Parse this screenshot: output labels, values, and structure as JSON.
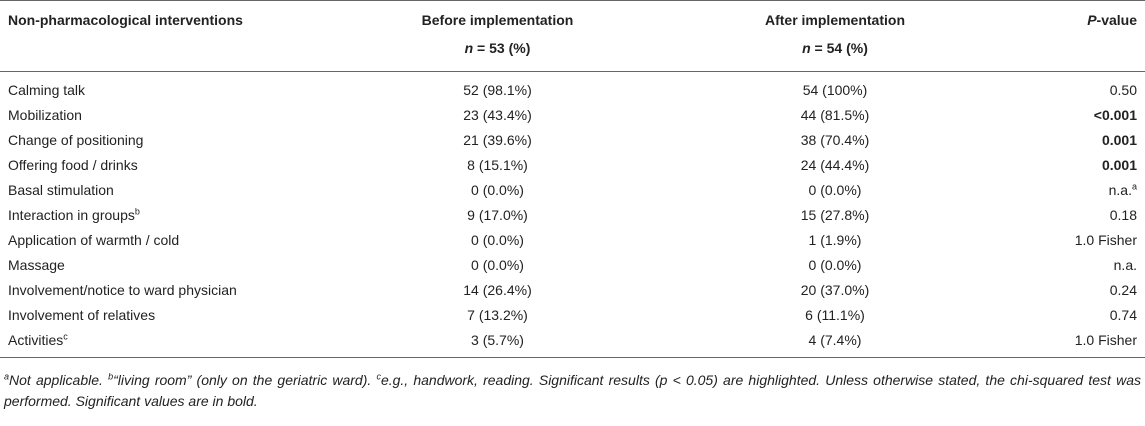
{
  "header": {
    "col1": "Non-pharmacological interventions",
    "col2_line1": "Before implementation",
    "col2_n": "n",
    "col2_rest": " = 53 (%)",
    "col3_line1": "After implementation",
    "col3_n": "n",
    "col3_rest": " = 54 (%)",
    "col4_p": "P",
    "col4_rest": "-value"
  },
  "rows": [
    {
      "label": "Calming talk",
      "sup": "",
      "before": "52 (98.1%)",
      "after": "54 (100%)",
      "p": "0.50",
      "p_sup": "",
      "bold": false
    },
    {
      "label": "Mobilization",
      "sup": "",
      "before": "23 (43.4%)",
      "after": "44 (81.5%)",
      "p": "<0.001",
      "p_sup": "",
      "bold": true
    },
    {
      "label": "Change of positioning",
      "sup": "",
      "before": "21 (39.6%)",
      "after": "38 (70.4%)",
      "p": "0.001",
      "p_sup": "",
      "bold": true
    },
    {
      "label": "Offering food / drinks",
      "sup": "",
      "before": "8 (15.1%)",
      "after": "24 (44.4%)",
      "p": "0.001",
      "p_sup": "",
      "bold": true
    },
    {
      "label": "Basal stimulation",
      "sup": "",
      "before": "0 (0.0%)",
      "after": "0 (0.0%)",
      "p": "n.a.",
      "p_sup": "a",
      "bold": false
    },
    {
      "label": "Interaction in groups",
      "sup": "b",
      "before": "9 (17.0%)",
      "after": "15 (27.8%)",
      "p": "0.18",
      "p_sup": "",
      "bold": false
    },
    {
      "label": "Application of warmth / cold",
      "sup": "",
      "before": "0 (0.0%)",
      "after": "1 (1.9%)",
      "p": "1.0 Fisher",
      "p_sup": "",
      "bold": false
    },
    {
      "label": "Massage",
      "sup": "",
      "before": "0 (0.0%)",
      "after": "0 (0.0%)",
      "p": "n.a.",
      "p_sup": "",
      "bold": false
    },
    {
      "label": "Involvement/notice to ward physician",
      "sup": "",
      "before": "14 (26.4%)",
      "after": "20 (37.0%)",
      "p": "0.24",
      "p_sup": "",
      "bold": false
    },
    {
      "label": "Involvement of relatives",
      "sup": "",
      "before": "7 (13.2%)",
      "after": "6 (11.1%)",
      "p": "0.74",
      "p_sup": "",
      "bold": false
    },
    {
      "label": "Activities",
      "sup": "c",
      "before": "3 (5.7%)",
      "after": "4 (7.4%)",
      "p": "1.0 Fisher",
      "p_sup": "",
      "bold": false
    }
  ],
  "footnote": {
    "a_mark": "a",
    "a_text": "Not applicable. ",
    "b_mark": "b",
    "b_text": "“living room” (only on the geriatric ward). ",
    "c_mark": "c",
    "c_text": "e.g., handwork, reading. Significant results (p < 0.05) are highlighted. Unless otherwise stated, the chi-squared test was performed. Significant values are in bold."
  }
}
